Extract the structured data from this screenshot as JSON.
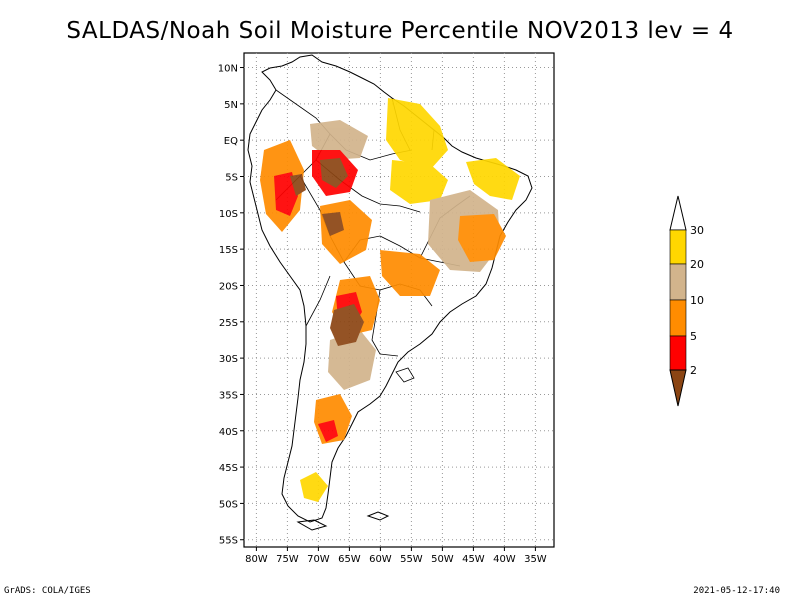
{
  "title": "SALDAS/Noah Soil Moisture Percentile NOV2013 lev = 4",
  "footer": {
    "left": "GrADS: COLA/IGES",
    "right": "2021-05-12-17:40"
  },
  "map": {
    "lat_labels": [
      "10N",
      "5N",
      "EQ",
      "5S",
      "10S",
      "15S",
      "20S",
      "25S",
      "30S",
      "35S",
      "40S",
      "45S",
      "50S",
      "55S"
    ],
    "lat_values": [
      10,
      5,
      0,
      -5,
      -10,
      -15,
      -20,
      -25,
      -30,
      -35,
      -40,
      -45,
      -50,
      -55
    ],
    "lon_labels": [
      "80W",
      "75W",
      "70W",
      "65W",
      "60W",
      "55W",
      "50W",
      "45W",
      "40W",
      "35W"
    ],
    "lon_values": [
      -80,
      -75,
      -70,
      -65,
      -60,
      -55,
      -50,
      -45,
      -40,
      -35
    ],
    "lon_range": [
      -82,
      -32
    ],
    "lat_range": [
      -56,
      12
    ]
  },
  "legend": {
    "labels": [
      "2",
      "5",
      "10",
      "20",
      "30"
    ],
    "colors": {
      "below_2": "#8b4513",
      "from_2_to_5": "#ff0000",
      "from_5_to_10": "#ff8c00",
      "from_10_to_20": "#d2b48c",
      "from_20_to_30": "#ffd700",
      "above_30": "#ffffff"
    }
  }
}
